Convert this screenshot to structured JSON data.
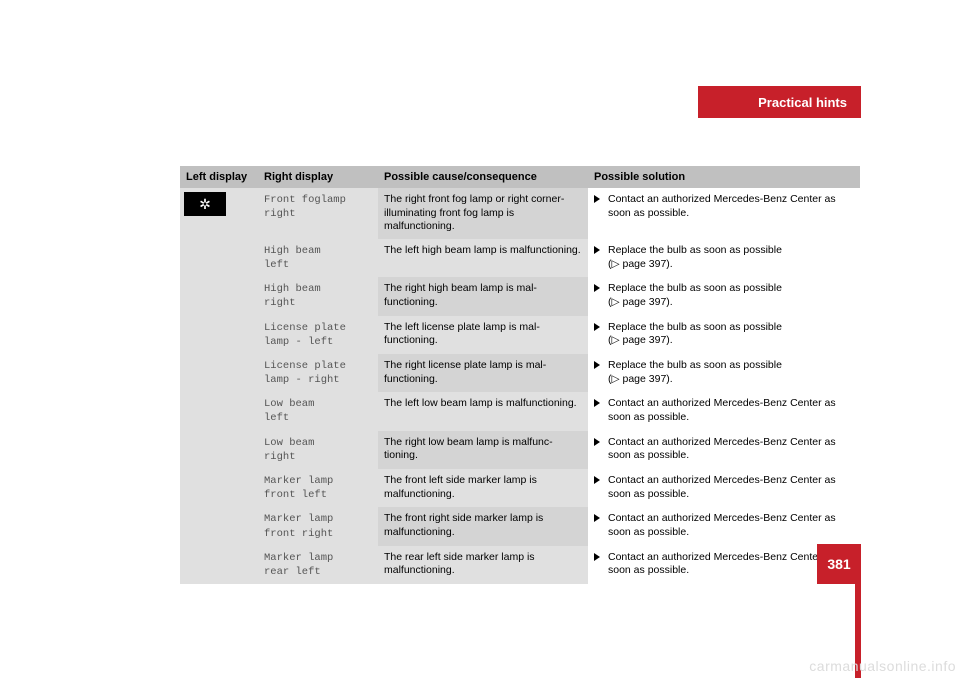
{
  "header": {
    "title": "Practical hints"
  },
  "page_number": "381",
  "watermark": "carmanualsonline.info",
  "columns": {
    "left": "Left display",
    "right": "Right display",
    "cause": "Possible cause/consequence",
    "solution": "Possible solution"
  },
  "icon_glyph": "✲",
  "rows": [
    {
      "right_l1": "Front foglamp",
      "right_l2": "right",
      "cause": "The right front fog lamp or right cor­ner-illuminating front fog lamp is malfunctioning.",
      "solution": "Contact an authorized Mercedes-Benz Center as soon as possible."
    },
    {
      "right_l1": "High beam",
      "right_l2": "left",
      "cause": "The left high beam lamp is malfunc­tioning.",
      "solution": "Replace the bulb as soon as possible",
      "pageref": "(▷ page 397)."
    },
    {
      "right_l1": "High beam",
      "right_l2": "right",
      "cause": "The right high beam lamp is mal­functioning.",
      "solution": "Replace the bulb as soon as possible",
      "pageref": "(▷ page 397)."
    },
    {
      "right_l1": "License plate",
      "right_l2": "lamp - left",
      "cause": "The left license plate lamp is mal­functioning.",
      "solution": "Replace the bulb as soon as possible",
      "pageref": "(▷ page 397)."
    },
    {
      "right_l1": "License plate",
      "right_l2": "lamp - right",
      "cause": "The right license plate lamp is mal­functioning.",
      "solution": "Replace the bulb as soon as possible",
      "pageref": "(▷ page 397)."
    },
    {
      "right_l1": "Low beam",
      "right_l2": "left",
      "cause": "The left low beam lamp is malfunc­tioning.",
      "solution": "Contact an authorized Mercedes-Benz Center as soon as possible."
    },
    {
      "right_l1": "Low beam",
      "right_l2": "right",
      "cause": "The right low beam lamp is malfunc­tioning.",
      "solution": "Contact an authorized Mercedes-Benz Center as soon as possible."
    },
    {
      "right_l1": "Marker lamp",
      "right_l2": "front left",
      "cause": "The front left side marker lamp is malfunctioning.",
      "solution": "Contact an authorized Mercedes-Benz Center as soon as possible."
    },
    {
      "right_l1": "Marker lamp",
      "right_l2": "front right",
      "cause": "The front right side marker lamp is malfunctioning.",
      "solution": "Contact an authorized Mercedes-Benz Center as soon as possible."
    },
    {
      "right_l1": "Marker lamp",
      "right_l2": "rear left",
      "cause": "The rear left side marker lamp is malfunctioning.",
      "solution": "Contact an authorized Mercedes-Benz Center as soon as possible."
    }
  ],
  "colors": {
    "brand_red": "#c7202a",
    "header_gray": "#c0c0c0",
    "left_gray": "#e0e0e0",
    "cause_a": "#d4d4d4",
    "cause_b": "#e0e0e0"
  }
}
